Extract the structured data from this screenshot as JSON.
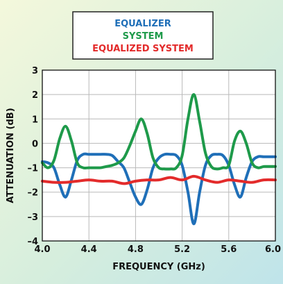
{
  "chart_data": {
    "type": "line",
    "title": "",
    "xlabel": "FREQUENCY (GHz)",
    "ylabel": "ATTENUATION (dB)",
    "xlim": [
      4.0,
      6.0
    ],
    "ylim": [
      -4,
      3
    ],
    "xticks": [
      "4.0",
      "4.4",
      "4.8",
      "5.2",
      "5.6",
      "6.0"
    ],
    "yticks": [
      "–4",
      "–3",
      "–2",
      "–1",
      "0",
      "1",
      "2",
      "3"
    ],
    "grid": true,
    "legend_position": "top-center",
    "series": [
      {
        "name": "EQUALIZER",
        "color": "#1f6fb8",
        "x": [
          4.0,
          4.05,
          4.1,
          4.15,
          4.2,
          4.25,
          4.3,
          4.35,
          4.4,
          4.45,
          4.5,
          4.55,
          4.6,
          4.65,
          4.7,
          4.75,
          4.8,
          4.85,
          4.9,
          4.95,
          5.0,
          5.05,
          5.1,
          5.15,
          5.2,
          5.25,
          5.3,
          5.35,
          5.4,
          5.45,
          5.5,
          5.55,
          5.6,
          5.65,
          5.7,
          5.75,
          5.8,
          5.85,
          5.9,
          5.95,
          6.0
        ],
        "y": [
          -0.75,
          -0.8,
          -1.0,
          -1.7,
          -2.2,
          -1.5,
          -0.7,
          -0.45,
          -0.45,
          -0.45,
          -0.45,
          -0.45,
          -0.5,
          -0.75,
          -1.0,
          -1.6,
          -2.2,
          -2.5,
          -1.9,
          -1.0,
          -0.6,
          -0.45,
          -0.45,
          -0.5,
          -0.9,
          -2.0,
          -3.3,
          -2.0,
          -0.9,
          -0.5,
          -0.45,
          -0.5,
          -0.9,
          -1.7,
          -2.2,
          -1.4,
          -0.75,
          -0.55,
          -0.55,
          -0.55,
          -0.55
        ]
      },
      {
        "name": "SYSTEM",
        "color": "#1e9a4a",
        "x": [
          4.0,
          4.05,
          4.1,
          4.15,
          4.2,
          4.25,
          4.3,
          4.35,
          4.4,
          4.45,
          4.5,
          4.55,
          4.6,
          4.65,
          4.7,
          4.75,
          4.8,
          4.85,
          4.9,
          4.95,
          5.0,
          5.05,
          5.1,
          5.15,
          5.2,
          5.25,
          5.3,
          5.35,
          5.4,
          5.45,
          5.5,
          5.55,
          5.6,
          5.65,
          5.7,
          5.75,
          5.8,
          5.85,
          5.9,
          5.95,
          6.0
        ],
        "y": [
          -0.8,
          -1.0,
          -0.7,
          0.2,
          0.7,
          0.1,
          -0.8,
          -1.0,
          -1.0,
          -1.0,
          -1.0,
          -0.95,
          -0.9,
          -0.8,
          -0.6,
          -0.1,
          0.5,
          1.0,
          0.4,
          -0.6,
          -1.0,
          -1.05,
          -1.05,
          -1.0,
          -0.5,
          1.0,
          2.0,
          0.9,
          -0.4,
          -0.95,
          -1.05,
          -1.0,
          -0.9,
          0.1,
          0.5,
          0.0,
          -0.8,
          -1.0,
          -0.95,
          -0.95,
          -0.95
        ]
      },
      {
        "name": "EQUALIZED SYSTEM",
        "color": "#e32b2b",
        "x": [
          4.0,
          4.1,
          4.2,
          4.3,
          4.4,
          4.5,
          4.6,
          4.7,
          4.8,
          4.9,
          5.0,
          5.1,
          5.2,
          5.3,
          5.4,
          5.5,
          5.6,
          5.7,
          5.8,
          5.9,
          6.0
        ],
        "y": [
          -1.55,
          -1.6,
          -1.6,
          -1.55,
          -1.5,
          -1.55,
          -1.55,
          -1.65,
          -1.55,
          -1.5,
          -1.5,
          -1.4,
          -1.5,
          -1.35,
          -1.5,
          -1.6,
          -1.5,
          -1.55,
          -1.6,
          -1.5,
          -1.5
        ]
      }
    ]
  }
}
